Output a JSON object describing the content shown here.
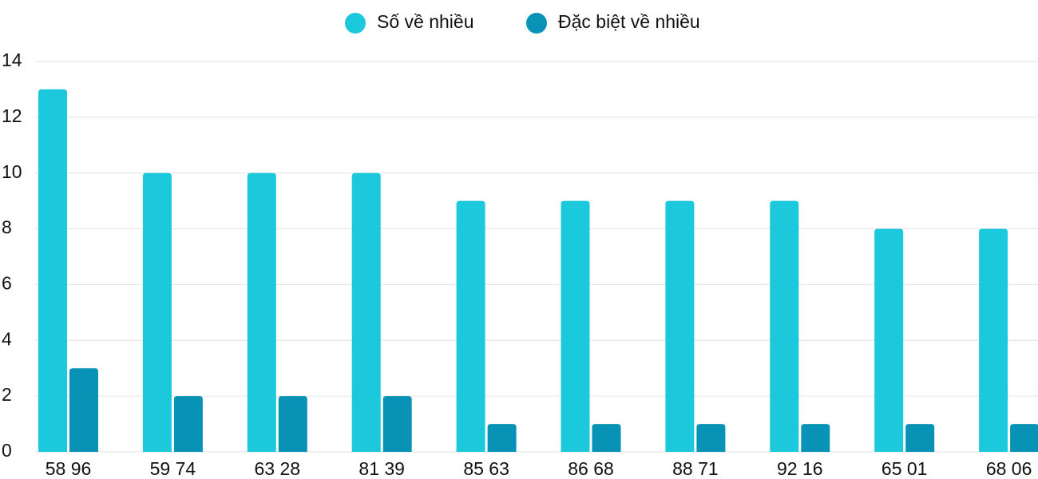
{
  "chart_data": {
    "type": "bar",
    "categories": [
      "58 96",
      "59 74",
      "63 28",
      "81 39",
      "85 63",
      "86 68",
      "88 71",
      "92 16",
      "65 01",
      "68 06"
    ],
    "series": [
      {
        "name": "Số về nhiều",
        "color": "#1bc8dc",
        "values": [
          13,
          10,
          10,
          10,
          9,
          9,
          9,
          9,
          8,
          8
        ]
      },
      {
        "name": "Đặc biệt về nhiều",
        "color": "#0893b6",
        "values": [
          3,
          2,
          2,
          2,
          1,
          1,
          1,
          1,
          1,
          1
        ]
      }
    ],
    "ylim": [
      0,
      14
    ],
    "yticks": [
      0,
      2,
      4,
      6,
      8,
      10,
      12,
      14
    ],
    "grid": true,
    "legend": "top"
  }
}
